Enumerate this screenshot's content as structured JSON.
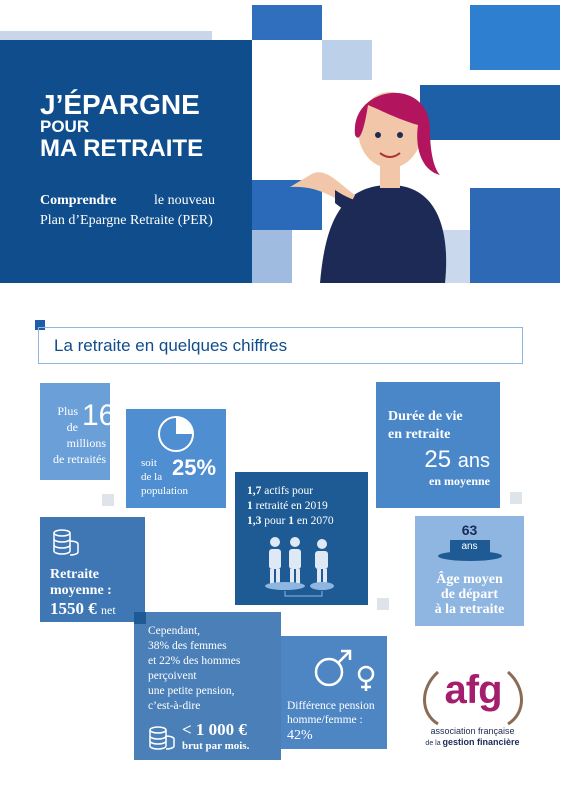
{
  "header": {
    "title": [
      "J’ÉPARGNE",
      "POUR",
      "MA RETRAITE"
    ],
    "subtitle_bold": "Comprendre",
    "subtitle": [
      "le nouveau",
      "Plan d’Epargne Retraite (PER)"
    ]
  },
  "section_title": "La retraite en quelques chiffres",
  "retirees": {
    "prefix": [
      "Plus",
      "de"
    ],
    "number": "16",
    "suffix": [
      "millions",
      "de retraités"
    ]
  },
  "share": {
    "prefix": [
      "soit",
      "de la"
    ],
    "pct": {
      "value": 25,
      "label": "25%"
    },
    "suffix": "population"
  },
  "duration": {
    "label": [
      "Durée de vie",
      "en retraite"
    ],
    "number": "25",
    "unit": "ans",
    "note": "en moyenne"
  },
  "ratio": {
    "lines": [
      [
        "1,7",
        " actifs pour"
      ],
      [
        "1",
        " retraité en 2019"
      ],
      [
        "1,3",
        " pour ",
        "1",
        " en 2070"
      ]
    ]
  },
  "average": {
    "label": [
      "Retraite",
      "moyenne :"
    ],
    "amount": "1550 €",
    "unit": "net"
  },
  "age": {
    "number": "63",
    "unit": "ans",
    "caption": [
      "Âge moyen",
      "de départ",
      "à la retraite"
    ]
  },
  "pension": {
    "lines": [
      "Cependant,",
      "38% des femmes",
      "et 22% des hommes",
      "perçoivent",
      "une petite pension,",
      "c’est-à-dire"
    ],
    "amount": "< 1 000 €",
    "note": "brut par mois."
  },
  "gap": {
    "label": [
      "Différence pension",
      "homme/femme :"
    ],
    "value": "42%"
  },
  "logo": {
    "name": "afg",
    "line1": "association française",
    "line2a": "de la ",
    "line2b": "gestion financière"
  }
}
